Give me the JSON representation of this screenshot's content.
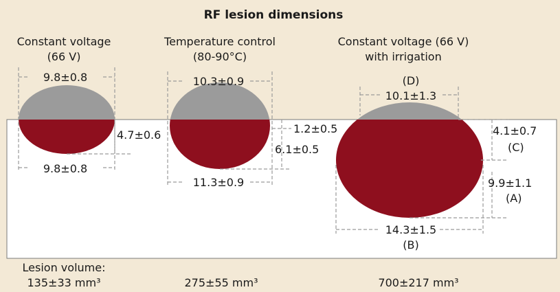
{
  "title": "RF lesion dimensions",
  "colors": {
    "background": "#f3e9d6",
    "tissue": "#ffffff",
    "lesion_above": "#9b9b9b",
    "lesion_below": "#8e0f1e",
    "dimension_line": "#9a9a9a"
  },
  "lesions": [
    {
      "heading_line1": "Constant voltage",
      "heading_line2": "(66 V)",
      "top_width": "9.8±0.8",
      "bottom_width": "9.8±0.8",
      "depth": "4.7±0.6",
      "volume": "135±33 mm³"
    },
    {
      "heading_line1": "Temperature control",
      "heading_line2": "(80-90°C)",
      "top_width": "10.3±0.9",
      "bottom_width": "11.3±0.9",
      "surface_offset": "1.2±0.5",
      "depth": "6.1±0.5",
      "volume": "275±55 mm³"
    },
    {
      "heading_line1": "Constant voltage (66 V)",
      "heading_line2": "with irrigation",
      "top_label": "(D)",
      "top_width": "10.1±1.3",
      "surface_offset": "4.1±0.7",
      "surface_offset_tag": "(C)",
      "depth": "9.9±1.1",
      "depth_tag": "(A)",
      "bottom_width": "14.3±1.5",
      "bottom_width_tag": "(B)",
      "volume": "700±217 mm³"
    }
  ],
  "volume_label": "Lesion volume:"
}
